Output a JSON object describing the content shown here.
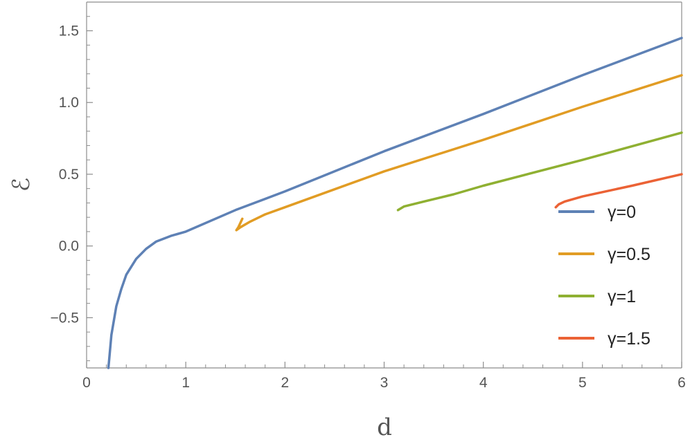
{
  "chart_data": {
    "type": "line",
    "xlabel": "d",
    "ylabel": "ℰ",
    "xlim": [
      0,
      6
    ],
    "ylim": [
      -0.85,
      1.7
    ],
    "xticks": [
      "0",
      "1",
      "2",
      "3",
      "4",
      "5",
      "6"
    ],
    "yticks": [
      "−0.5",
      "0.0",
      "0.5",
      "1.0",
      "1.5"
    ],
    "yticks_values": [
      -0.5,
      0.0,
      0.5,
      1.0,
      1.5
    ],
    "xticks_values": [
      0,
      1,
      2,
      3,
      4,
      5,
      6
    ],
    "legend_position": "bottom-right",
    "grid": false,
    "series": [
      {
        "name": "γ=0",
        "color": "#5E81B5",
        "points": [
          [
            0.22,
            -0.85
          ],
          [
            0.25,
            -0.62
          ],
          [
            0.3,
            -0.42
          ],
          [
            0.35,
            -0.3
          ],
          [
            0.4,
            -0.2
          ],
          [
            0.5,
            -0.09
          ],
          [
            0.6,
            -0.02
          ],
          [
            0.7,
            0.03
          ],
          [
            0.85,
            0.07
          ],
          [
            1.0,
            0.1
          ],
          [
            1.5,
            0.25
          ],
          [
            2,
            0.38
          ],
          [
            3,
            0.66
          ],
          [
            4,
            0.92
          ],
          [
            5,
            1.19
          ],
          [
            6,
            1.45
          ]
        ]
      },
      {
        "name": "γ=0.5",
        "color": "#E19C24",
        "points": [
          [
            1.57,
            0.19
          ],
          [
            1.55,
            0.16
          ],
          [
            1.53,
            0.13
          ],
          [
            1.51,
            0.11
          ],
          [
            1.55,
            0.13
          ],
          [
            1.65,
            0.17
          ],
          [
            1.8,
            0.22
          ],
          [
            2.0,
            0.27
          ],
          [
            3,
            0.52
          ],
          [
            4,
            0.74
          ],
          [
            5,
            0.97
          ],
          [
            6,
            1.19
          ]
        ]
      },
      {
        "name": "γ=1",
        "color": "#8FB032",
        "points": [
          [
            3.14,
            0.25
          ],
          [
            3.2,
            0.275
          ],
          [
            3.4,
            0.31
          ],
          [
            3.7,
            0.36
          ],
          [
            4,
            0.42
          ],
          [
            5,
            0.6
          ],
          [
            6,
            0.79
          ]
        ]
      },
      {
        "name": "γ=1.5",
        "color": "#EB6235",
        "points": [
          [
            4.73,
            0.27
          ],
          [
            4.76,
            0.29
          ],
          [
            4.82,
            0.31
          ],
          [
            5.0,
            0.345
          ],
          [
            5.5,
            0.42
          ],
          [
            6,
            0.5
          ]
        ]
      }
    ]
  }
}
